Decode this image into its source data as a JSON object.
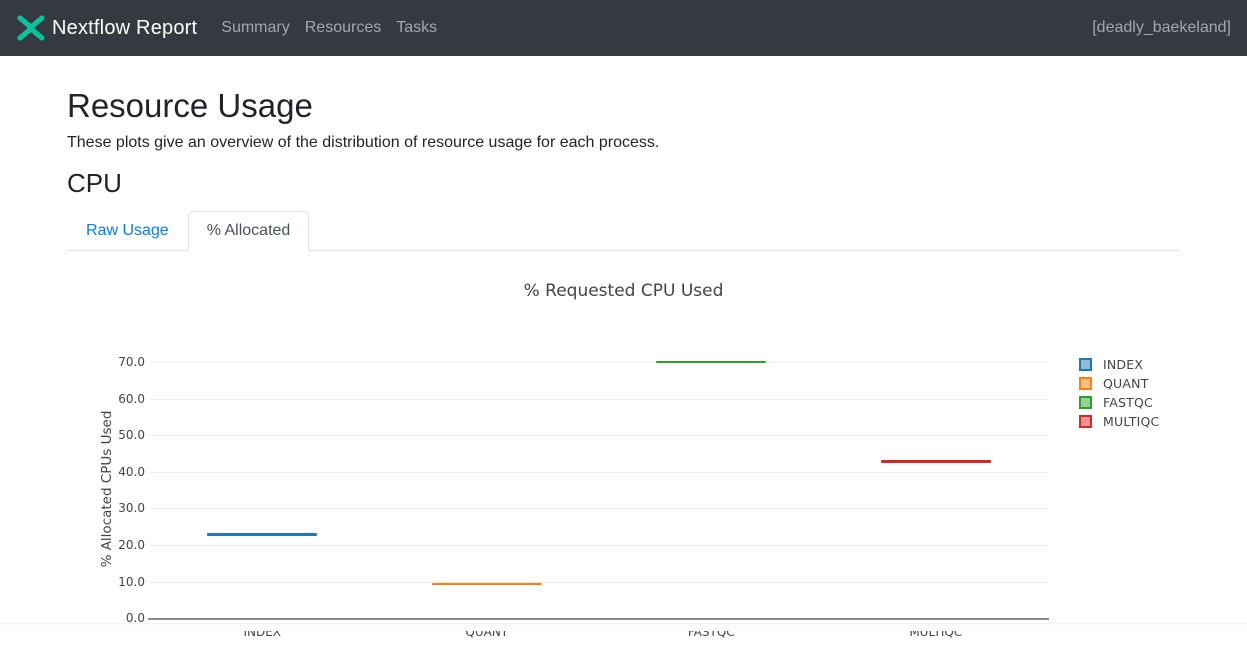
{
  "header": {
    "brand": "Nextflow Report",
    "logo_icon": "nextflow-double-chevron",
    "logo_color": "#0dc09d",
    "nav": [
      {
        "label": "Summary"
      },
      {
        "label": "Resources"
      },
      {
        "label": "Tasks"
      }
    ],
    "run_name": "[deadly_baekeland]"
  },
  "page": {
    "title": "Resource Usage",
    "description": "These plots give an overview of the distribution of resource usage for each process.",
    "section": "CPU",
    "tabs": [
      {
        "label": "Raw Usage",
        "active": false
      },
      {
        "label": "% Allocated",
        "active": true
      }
    ]
  },
  "chart_data": {
    "type": "violin",
    "rendered_as": "flat horizontal line per process (single-value distribution)",
    "title": "% Requested CPU Used",
    "xlabel": "",
    "ylabel": "% Allocated CPUs Used",
    "categories": [
      "INDEX",
      "QUANT",
      "FASTQC",
      "MULTIQC"
    ],
    "series": [
      {
        "name": "INDEX",
        "value": 22.9,
        "color": "#1f77b4",
        "fill": "#8fbcd9"
      },
      {
        "name": "QUANT",
        "value": 9.4,
        "color": "#ff7f0e",
        "fill": "#ffbf87"
      },
      {
        "name": "FASTQC",
        "value": 70.0,
        "color": "#2ca02c",
        "fill": "#96d096"
      },
      {
        "name": "MULTIQC",
        "value": 42.9,
        "color": "#d62728",
        "fill": "#eb9394"
      }
    ],
    "ylim": [
      0,
      74.8
    ],
    "yticks": [
      0,
      10,
      20,
      30,
      40,
      50,
      60,
      70
    ],
    "ytick_format": "one-decimal",
    "grid": "horizontal",
    "legend_position": "right"
  }
}
